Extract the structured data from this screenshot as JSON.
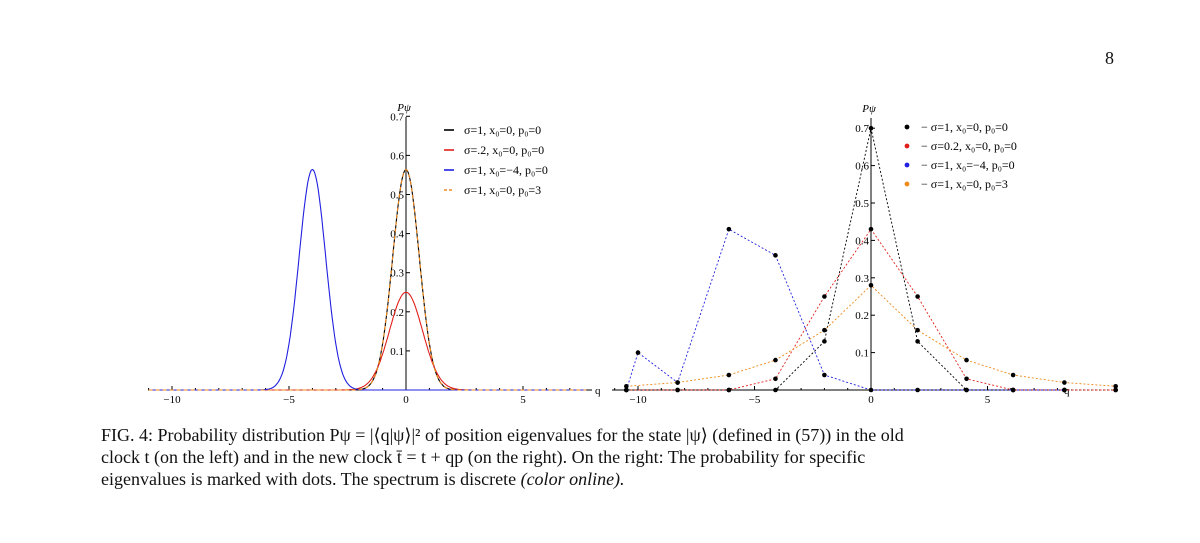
{
  "page_number": "8",
  "caption": {
    "line1": "FIG. 4: Probability distribution Pψ = |⟨q|ψ⟩|² of position eigenvalues for the state |ψ⟩ (defined in (57)) in the old",
    "line2": "clock t (on the left) and in the new clock t̄ = t + qp (on the right). On the right: The probability for specific",
    "line3a": "eigenvalues is marked with dots. The spectrum is discrete ",
    "line3b": "(color online)."
  },
  "colors": {
    "black": "#000000",
    "red": "#e0201b",
    "blue": "#2020e0",
    "orange": "#f08a1a"
  },
  "chart_data": [
    {
      "type": "line",
      "ylabel": "Pψ",
      "xlabel": "q",
      "xlim": [
        -11,
        7.7
      ],
      "ylim": [
        0,
        0.7
      ],
      "xticks": [
        -10,
        -5,
        0,
        5
      ],
      "xtick_labels": [
        "−10",
        "−5",
        "0",
        "5"
      ],
      "yticks": [
        0.1,
        0.2,
        0.3,
        0.4,
        0.5,
        0.6,
        0.7
      ],
      "ytick_labels": [
        "0.1",
        "0.2",
        "0.3",
        "0.4",
        "0.5",
        "0.6",
        "0.7"
      ],
      "legend_position": "top-right",
      "series": [
        {
          "name": "σ=1, x₀=0, p₀=0",
          "sigma": 1,
          "x0": 0,
          "p0": 0,
          "peak": 0.564,
          "color": "#000000",
          "dash": false
        },
        {
          "name": "σ=.2, x₀=0, p₀=0",
          "sigma": 0.2,
          "x0": 0,
          "p0": 0,
          "peak": 0.25,
          "color": "#e0201b",
          "dash": false
        },
        {
          "name": "σ=1, x₀=−4, p₀=0",
          "sigma": 1,
          "x0": -4,
          "p0": 0,
          "peak": 0.564,
          "color": "#2020e0",
          "dash": false
        },
        {
          "name": "σ=1, x₀=0, p₀=3",
          "sigma": 1,
          "x0": 0,
          "p0": 3,
          "peak": 0.564,
          "color": "#f08a1a",
          "dash": true
        }
      ]
    },
    {
      "type": "scatter",
      "ylabel": "Pψ",
      "xlabel": "q",
      "xlim": [
        -11,
        8.3
      ],
      "ylim": [
        0,
        0.7
      ],
      "xticks": [
        -10,
        -5,
        0,
        5
      ],
      "xtick_labels": [
        "−10",
        "−5",
        "0",
        "5"
      ],
      "yticks": [
        0.1,
        0.2,
        0.3,
        0.4,
        0.5,
        0.6,
        0.7
      ],
      "ytick_labels": [
        "0.1",
        "0.2",
        "0.3",
        "0.4",
        "0.5",
        "0.6",
        "0.7"
      ],
      "legend_position": "top-right",
      "series": [
        {
          "name": "− σ=1, x₀=0, p₀=0",
          "color": "#000000",
          "x": [
            -10.5,
            -8.3,
            -6.1,
            -4.1,
            -2.0,
            0,
            2.0,
            4.1,
            6.1,
            8.3,
            10.5
          ],
          "y": [
            0,
            0,
            0,
            0,
            0.13,
            0.7,
            0.13,
            0,
            0,
            0,
            0
          ]
        },
        {
          "name": "− σ=0.2, x₀=0, p₀=0",
          "color": "#e0201b",
          "x": [
            -10.5,
            -8.3,
            -6.1,
            -4.1,
            -2.0,
            0,
            2.0,
            4.1,
            6.1,
            8.3,
            10.5
          ],
          "y": [
            0,
            0,
            0,
            0.03,
            0.25,
            0.43,
            0.25,
            0.03,
            0,
            0,
            0
          ]
        },
        {
          "name": "− σ=1, x₀=−4, p₀=0",
          "color": "#2020e0",
          "x": [
            -10.5,
            -10.0,
            -8.3,
            -6.1,
            -4.1,
            -2.0,
            0,
            2.0,
            4.1,
            6.1,
            8.3
          ],
          "y": [
            0,
            0.1,
            0.02,
            0.43,
            0.36,
            0.04,
            0,
            0,
            0,
            0,
            0
          ]
        },
        {
          "name": "− σ=1, x₀=0, p₀=3",
          "color": "#f08a1a",
          "x": [
            -10.5,
            -8.3,
            -6.1,
            -4.1,
            -2.0,
            0,
            2.0,
            4.1,
            6.1,
            8.3,
            10.5
          ],
          "y": [
            0.01,
            0.02,
            0.04,
            0.08,
            0.16,
            0.28,
            0.16,
            0.08,
            0.04,
            0.02,
            0.01
          ]
        }
      ]
    }
  ]
}
